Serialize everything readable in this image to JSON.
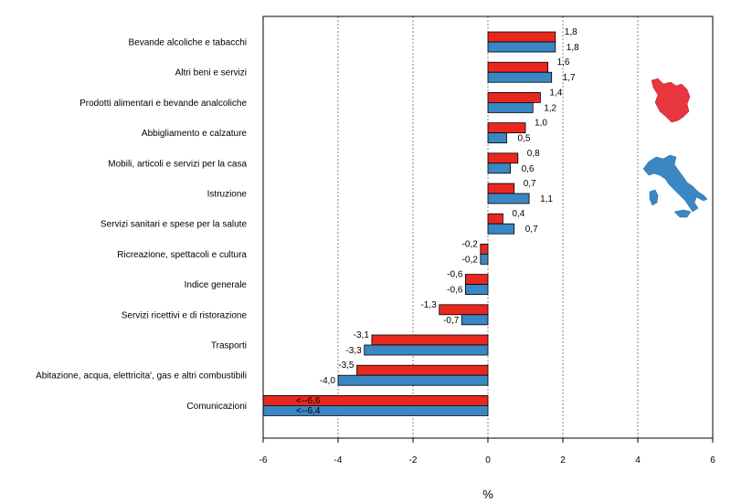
{
  "chart_data": {
    "type": "bar",
    "orientation": "horizontal",
    "xlabel": "%",
    "xlim": [
      -6,
      6
    ],
    "xticks": [
      "-6",
      "-4",
      "-2",
      "0",
      "2",
      "4",
      "6"
    ],
    "xtick_values": [
      -6,
      -4,
      -2,
      0,
      2,
      4,
      6
    ],
    "grid": "vertical dashed",
    "categories": [
      "Bevande alcoliche e tabacchi",
      "Altri beni e servizi",
      "Prodotti alimentari e bevande analcoliche",
      "Abbigliamento e calzature",
      "Mobili, articoli e servizi per la casa",
      "Istruzione",
      "Servizi sanitari e spese per la salute",
      "Ricreazione, spettacoli e cultura",
      "Indice generale",
      "Servizi ricettivi e di ristorazione",
      "Trasporti",
      "Abitazione, acqua, elettricita', gas e altri combustibili",
      "Comunicazioni"
    ],
    "series": [
      {
        "color": "#e8281e",
        "values": [
          1.8,
          1.6,
          1.4,
          1.0,
          0.8,
          0.7,
          0.4,
          -0.2,
          -0.6,
          -1.3,
          -3.1,
          -3.5,
          -6.6
        ],
        "labels": [
          "1,8",
          "1,6",
          "1,4",
          "1,0",
          "0,8",
          "0,7",
          "0,4",
          "-0,2",
          "-0,6",
          "-1,3",
          "-3,1",
          "-3,5",
          "<--6,6"
        ]
      },
      {
        "color": "#3a87c4",
        "values": [
          1.8,
          1.7,
          1.2,
          0.5,
          0.6,
          1.1,
          0.7,
          -0.2,
          -0.6,
          -0.7,
          -3.3,
          -4.0,
          -6.4
        ],
        "labels": [
          "1,8",
          "1,7",
          "1,2",
          "0,5",
          "0,6",
          "1,1",
          "0,7",
          "-0,2",
          "-0,6",
          "-0,7",
          "-3,3",
          "-4,0",
          "<--6,4"
        ]
      }
    ],
    "clipped_value_label_color": "#ffffff",
    "legend_images": [
      {
        "name": "tuscany-map-icon",
        "color": "#e8363e"
      },
      {
        "name": "italy-map-icon",
        "color": "#3a87c4"
      }
    ]
  }
}
